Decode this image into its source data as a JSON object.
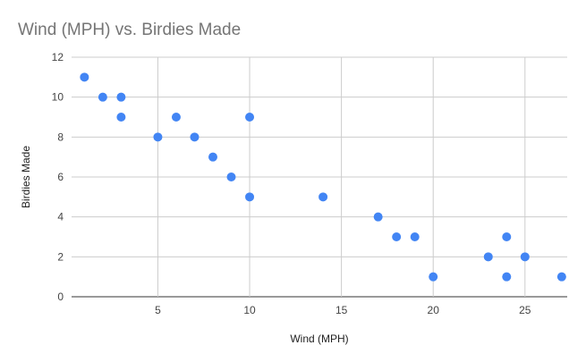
{
  "chart_data": {
    "type": "scatter",
    "title": "Wind (MPH) vs. Birdies Made",
    "xlabel": "Wind (MPH)",
    "ylabel": "Birdies Made",
    "xlim": [
      0.3,
      27.3
    ],
    "ylim": [
      0,
      12
    ],
    "xticks": [
      5,
      10,
      15,
      20,
      25
    ],
    "yticks": [
      0,
      2,
      4,
      6,
      8,
      10,
      12
    ],
    "grid": true,
    "points": [
      {
        "x": 1,
        "y": 11
      },
      {
        "x": 2,
        "y": 10
      },
      {
        "x": 3,
        "y": 10
      },
      {
        "x": 3,
        "y": 9
      },
      {
        "x": 5,
        "y": 8
      },
      {
        "x": 6,
        "y": 9
      },
      {
        "x": 7,
        "y": 8
      },
      {
        "x": 8,
        "y": 7
      },
      {
        "x": 9,
        "y": 6
      },
      {
        "x": 10,
        "y": 9
      },
      {
        "x": 10,
        "y": 5
      },
      {
        "x": 14,
        "y": 5
      },
      {
        "x": 17,
        "y": 4
      },
      {
        "x": 18,
        "y": 3
      },
      {
        "x": 19,
        "y": 3
      },
      {
        "x": 20,
        "y": 1
      },
      {
        "x": 23,
        "y": 2
      },
      {
        "x": 24,
        "y": 3
      },
      {
        "x": 24,
        "y": 1
      },
      {
        "x": 25,
        "y": 2
      },
      {
        "x": 27,
        "y": 1
      }
    ],
    "colors": {
      "point": "#4285f4",
      "grid": "#cccccc",
      "baseline": "#333333",
      "title": "#757575"
    }
  }
}
